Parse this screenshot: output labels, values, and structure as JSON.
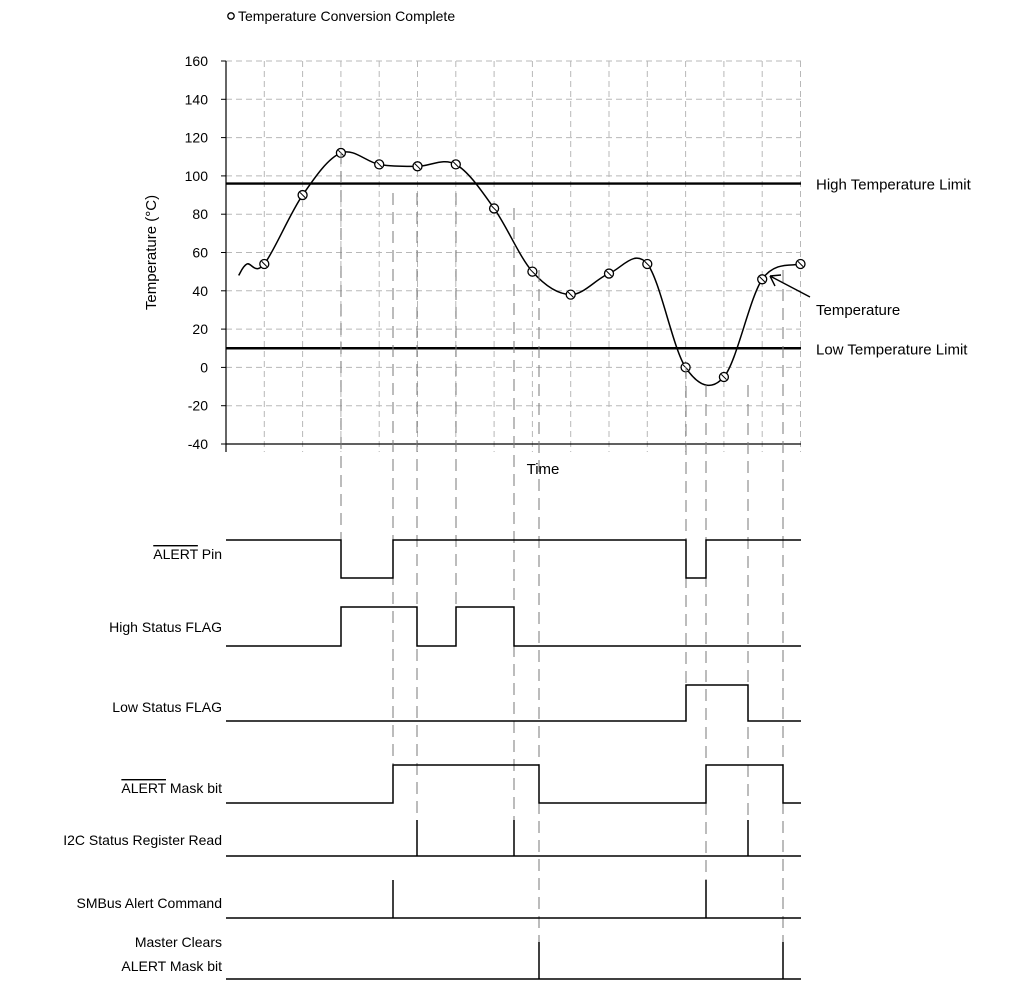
{
  "legend": {
    "marker_label": "Temperature Conversion Complete"
  },
  "chart_data": {
    "type": "line",
    "title": "",
    "xlabel": "Time",
    "ylabel": "Temperature (°C)",
    "ylim": [
      -40,
      160
    ],
    "yticks": [
      160,
      140,
      120,
      100,
      80,
      60,
      40,
      20,
      0,
      -20,
      -40
    ],
    "grid": true,
    "series": [
      {
        "name": "Temperature",
        "x": [
          1,
          2,
          3,
          4,
          5,
          6,
          7,
          8,
          9,
          10,
          11,
          12,
          13,
          14,
          15
        ],
        "values": [
          54,
          90,
          112,
          106,
          105,
          106,
          83,
          50,
          38,
          49,
          54,
          0,
          -5,
          46,
          54
        ]
      }
    ],
    "reference_lines": [
      {
        "label": "High Temperature Limit",
        "value": 96
      },
      {
        "label": "Low Temperature Limit",
        "value": 10
      }
    ],
    "annotations": [
      {
        "text": "Temperature"
      }
    ]
  },
  "signals": [
    {
      "name": "ALERT Pin",
      "base": "ALERT",
      "suffix": " Pin",
      "overline": true
    },
    {
      "name": "High Status FLAG",
      "base": "High Status FLAG",
      "suffix": "",
      "overline": false
    },
    {
      "name": "Low Status FLAG",
      "base": "Low Status FLAG",
      "suffix": "",
      "overline": false
    },
    {
      "name": "ALERT Mask bit",
      "base": "ALERT",
      "suffix": " Mask bit",
      "overline": true
    },
    {
      "name": "I2C Status Register Read",
      "base": "I2C Status Register Read",
      "suffix": "",
      "overline": false
    },
    {
      "name": "SMBus Alert Command",
      "base": "SMBus Alert Command",
      "suffix": "",
      "overline": false
    },
    {
      "name": "Master Clears ALERT Mask bit",
      "line1": "Master Clears",
      "line2": "ALERT Mask bit"
    }
  ]
}
